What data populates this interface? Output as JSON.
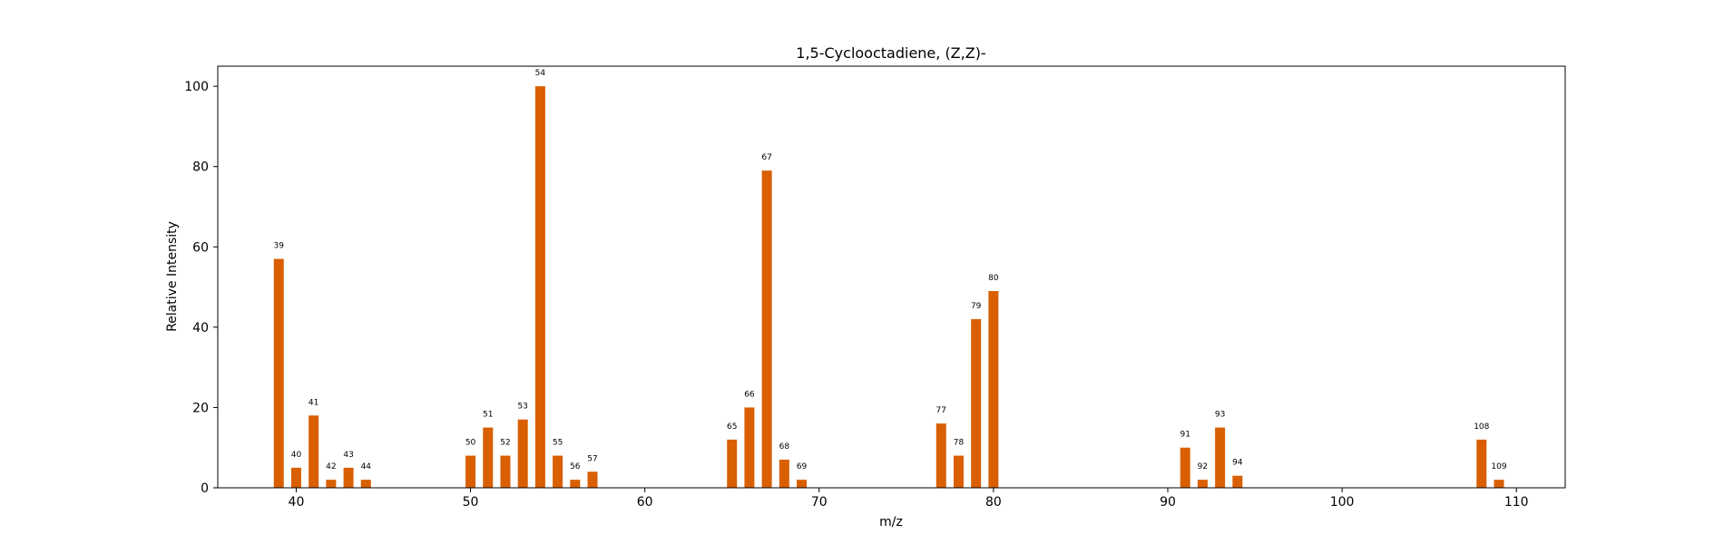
{
  "chart_data": {
    "type": "bar",
    "title": "1,5-Cyclooctadiene, (Z,Z)-",
    "xlabel": "m/z",
    "ylabel": "Relative Intensity",
    "xlim": [
      35.5,
      112.8
    ],
    "ylim": [
      0,
      105
    ],
    "xticks": [
      40,
      50,
      60,
      70,
      80,
      90,
      100,
      110
    ],
    "yticks": [
      0,
      20,
      40,
      60,
      80,
      100
    ],
    "grid": false,
    "bar_color": "#d95f02",
    "x": [
      39,
      40,
      41,
      42,
      43,
      44,
      50,
      51,
      52,
      53,
      54,
      55,
      56,
      57,
      65,
      66,
      67,
      68,
      69,
      77,
      78,
      79,
      80,
      91,
      92,
      93,
      94,
      108,
      109
    ],
    "values": [
      57,
      5,
      18,
      2,
      5,
      2,
      8,
      15,
      8,
      17,
      100,
      8,
      2,
      4,
      12,
      20,
      79,
      7,
      2,
      16,
      8,
      42,
      49,
      10,
      2,
      15,
      3,
      12,
      2
    ],
    "data_labels": [
      "39",
      "40",
      "41",
      "42",
      "43",
      "44",
      "50",
      "51",
      "52",
      "53",
      "54",
      "55",
      "56",
      "57",
      "65",
      "66",
      "67",
      "68",
      "69",
      "77",
      "78",
      "79",
      "80",
      "91",
      "92",
      "93",
      "94",
      "108",
      "109"
    ]
  }
}
